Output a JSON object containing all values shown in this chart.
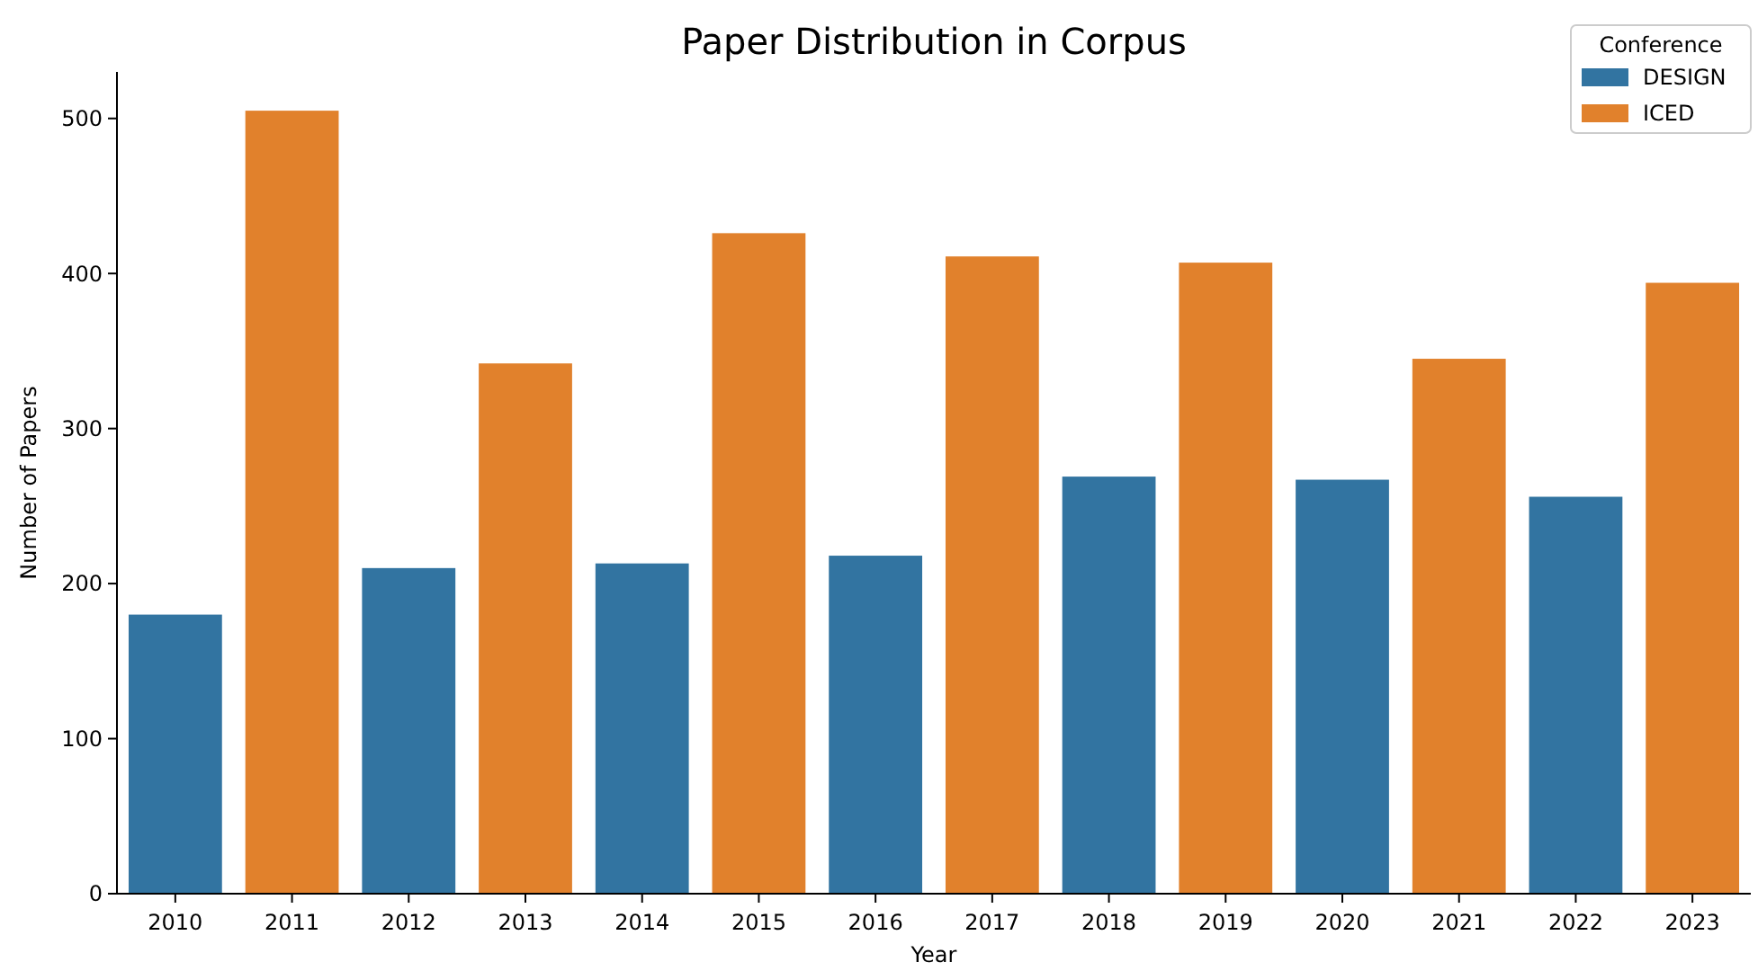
{
  "chart_data": {
    "type": "bar",
    "title": "Paper Distribution in Corpus",
    "xlabel": "Year",
    "ylabel": "Number of Papers",
    "legend_title": "Conference",
    "categories": [
      "2010",
      "2011",
      "2012",
      "2013",
      "2014",
      "2015",
      "2016",
      "2017",
      "2018",
      "2019",
      "2020",
      "2021",
      "2022",
      "2023"
    ],
    "series": [
      {
        "name": "DESIGN",
        "color": "#3274a1",
        "values": [
          180,
          null,
          210,
          null,
          213,
          null,
          218,
          null,
          269,
          null,
          267,
          null,
          256,
          null
        ]
      },
      {
        "name": "ICED",
        "color": "#e1812c",
        "values": [
          null,
          505,
          null,
          342,
          null,
          426,
          null,
          411,
          null,
          407,
          null,
          345,
          null,
          394
        ]
      }
    ],
    "stacked": true,
    "ylim": [
      0,
      530
    ],
    "yticks": [
      0,
      100,
      200,
      300,
      400,
      500
    ],
    "legend": "top right",
    "grid": false
  }
}
